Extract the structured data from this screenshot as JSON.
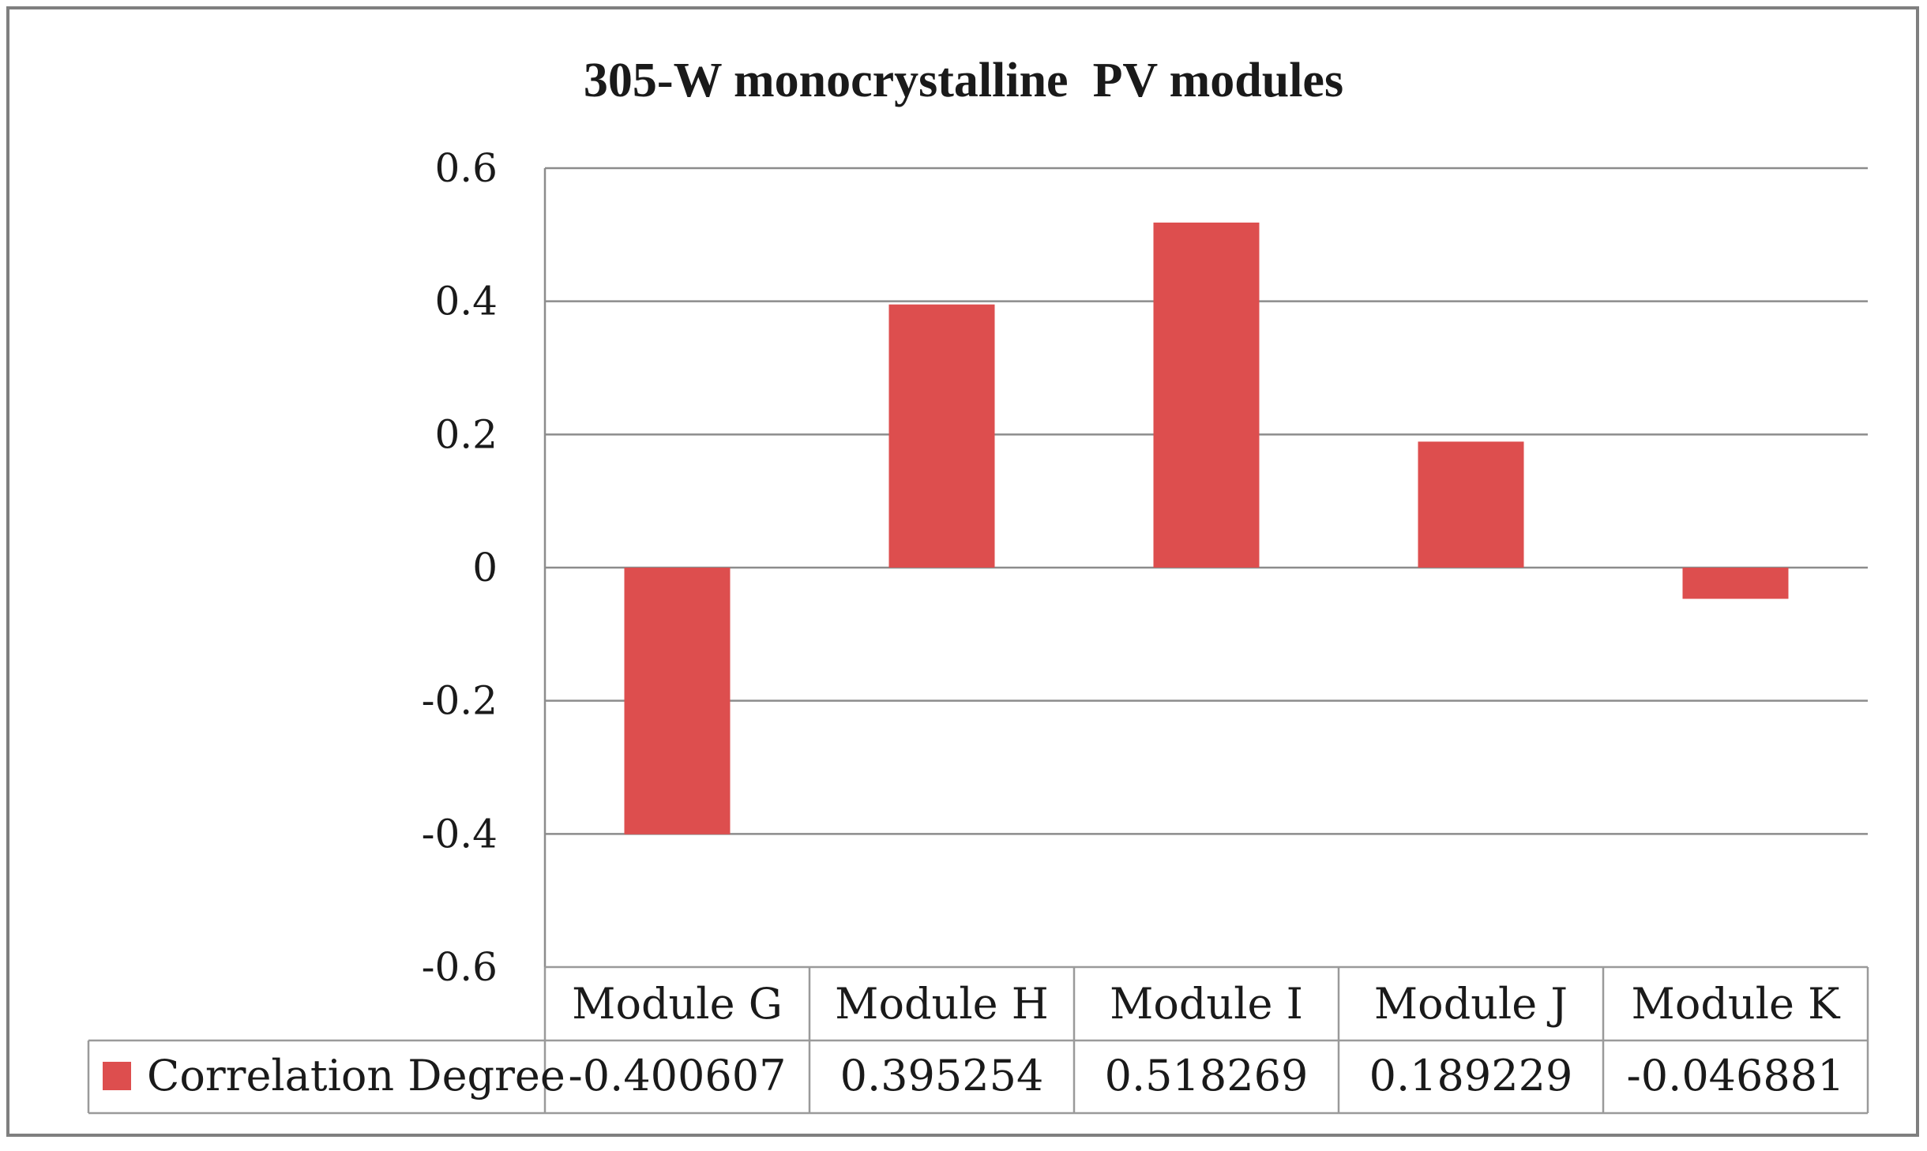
{
  "chart_data": {
    "type": "bar",
    "title": "305-W monocrystalline  PV modules",
    "categories": [
      "Module G",
      "Module H",
      "Module I",
      "Module J",
      "Module K"
    ],
    "series": [
      {
        "name": "Correlation Degree",
        "values": [
          -0.400607,
          0.395254,
          0.518269,
          0.189229,
          -0.046881
        ],
        "value_labels": [
          "-0.400607",
          "0.395254",
          "0.518269",
          "0.189229",
          "-0.046881"
        ],
        "color": "#dd4e4e"
      }
    ],
    "ylim": [
      -0.6,
      0.6
    ],
    "yticks": [
      0.6,
      0.4,
      0.2,
      0,
      -0.2,
      -0.4,
      -0.6
    ],
    "ytick_labels": [
      "0.6",
      "0.4",
      "0.2",
      "0",
      "-0.2",
      "-0.4",
      "-0.6"
    ],
    "grid": true,
    "legend": "data-table",
    "xlabel": "",
    "ylabel": ""
  },
  "colors": {
    "gridline": "#8c8c8c",
    "frame": "#7f7f7f",
    "table_border": "#9a9a9a"
  }
}
